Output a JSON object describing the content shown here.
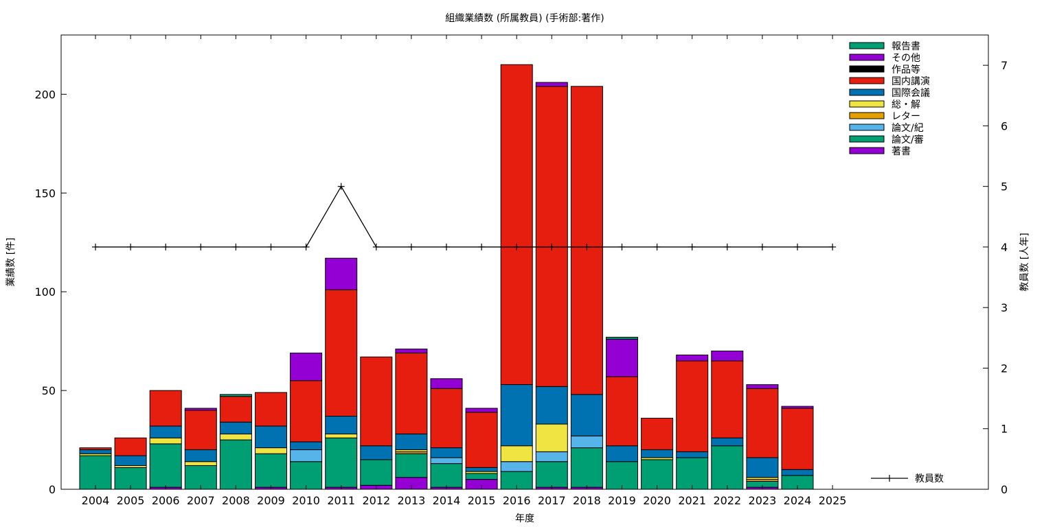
{
  "chart_data": {
    "type": "bar",
    "title": "組織業績数 (所属教員) (手術部:著作)",
    "xlabel": "年度",
    "ylabel": "業績数 [件]",
    "y2label": "教員数 [人年]",
    "ylim": [
      0,
      230
    ],
    "y2lim": [
      0,
      7.5
    ],
    "yticks": [
      0,
      50,
      100,
      150,
      200
    ],
    "y2ticks": [
      0,
      1,
      2,
      3,
      4,
      5,
      6,
      7
    ],
    "categories": [
      "2004",
      "2005",
      "2006",
      "2007",
      "2008",
      "2009",
      "2010",
      "2011",
      "2012",
      "2013",
      "2014",
      "2015",
      "2016",
      "2017",
      "2018",
      "2019",
      "2020",
      "2021",
      "2022",
      "2023",
      "2024",
      "2025"
    ],
    "series": [
      {
        "name": "著書",
        "color": "#9400d3",
        "values": [
          0,
          0,
          1,
          0,
          0,
          1,
          0,
          1,
          2,
          6,
          1,
          5,
          0,
          1,
          1,
          0,
          0,
          0,
          0,
          1,
          0,
          0
        ]
      },
      {
        "name": "論文/審",
        "color": "#009e73",
        "values": [
          17,
          11,
          22,
          12,
          25,
          17,
          14,
          25,
          13,
          12,
          12,
          3,
          9,
          13,
          20,
          14,
          15,
          16,
          22,
          3,
          7,
          0
        ]
      },
      {
        "name": "論文/紀",
        "color": "#56b4e9",
        "values": [
          0,
          0,
          0,
          0,
          0,
          0,
          6,
          0,
          0,
          0,
          3,
          0,
          5,
          5,
          6,
          0,
          0,
          0,
          0,
          0,
          0,
          0
        ]
      },
      {
        "name": "レター",
        "color": "#e69f00",
        "values": [
          0,
          0,
          0,
          0,
          0,
          0,
          0,
          0,
          0,
          1,
          0,
          0,
          0,
          0,
          0,
          0,
          0,
          0,
          0,
          1,
          0,
          0
        ]
      },
      {
        "name": "総・解",
        "color": "#f0e442",
        "values": [
          1,
          1,
          3,
          2,
          3,
          3,
          0,
          2,
          0,
          1,
          0,
          1,
          8,
          14,
          0,
          0,
          1,
          0,
          0,
          1,
          0,
          0
        ]
      },
      {
        "name": "国際会議",
        "color": "#0072b2",
        "values": [
          2,
          5,
          6,
          6,
          6,
          11,
          4,
          9,
          7,
          8,
          5,
          2,
          31,
          19,
          21,
          8,
          4,
          3,
          4,
          10,
          3,
          0
        ]
      },
      {
        "name": "国内講演",
        "color": "#e51e10",
        "values": [
          1,
          9,
          18,
          20,
          13,
          17,
          31,
          64,
          45,
          41,
          30,
          28,
          162,
          152,
          156,
          35,
          16,
          46,
          39,
          35,
          31,
          0
        ]
      },
      {
        "name": "作品等",
        "color": "#000000",
        "values": [
          0,
          0,
          0,
          0,
          0,
          0,
          0,
          0,
          0,
          0,
          0,
          0,
          0,
          0,
          0,
          0,
          0,
          0,
          0,
          0,
          0,
          0
        ]
      },
      {
        "name": "その他",
        "color": "#9400d3",
        "values": [
          0,
          0,
          0,
          1,
          0,
          0,
          14,
          16,
          0,
          2,
          5,
          2,
          0,
          2,
          0,
          19,
          0,
          3,
          5,
          2,
          1,
          0
        ]
      },
      {
        "name": "報告書",
        "color": "#009e73",
        "values": [
          0,
          0,
          0,
          0,
          1,
          0,
          0,
          0,
          0,
          0,
          0,
          0,
          0,
          0,
          0,
          1,
          0,
          0,
          0,
          0,
          0,
          0
        ]
      }
    ],
    "line": {
      "name": "教員数",
      "color": "#000000",
      "axis": "y2",
      "values": [
        4,
        4,
        4,
        4,
        4,
        4,
        4,
        5,
        4,
        4,
        4,
        4,
        4,
        4,
        4,
        4,
        4,
        4,
        4,
        4,
        4,
        4
      ]
    },
    "legend_placement": "top-right",
    "grid": false
  }
}
